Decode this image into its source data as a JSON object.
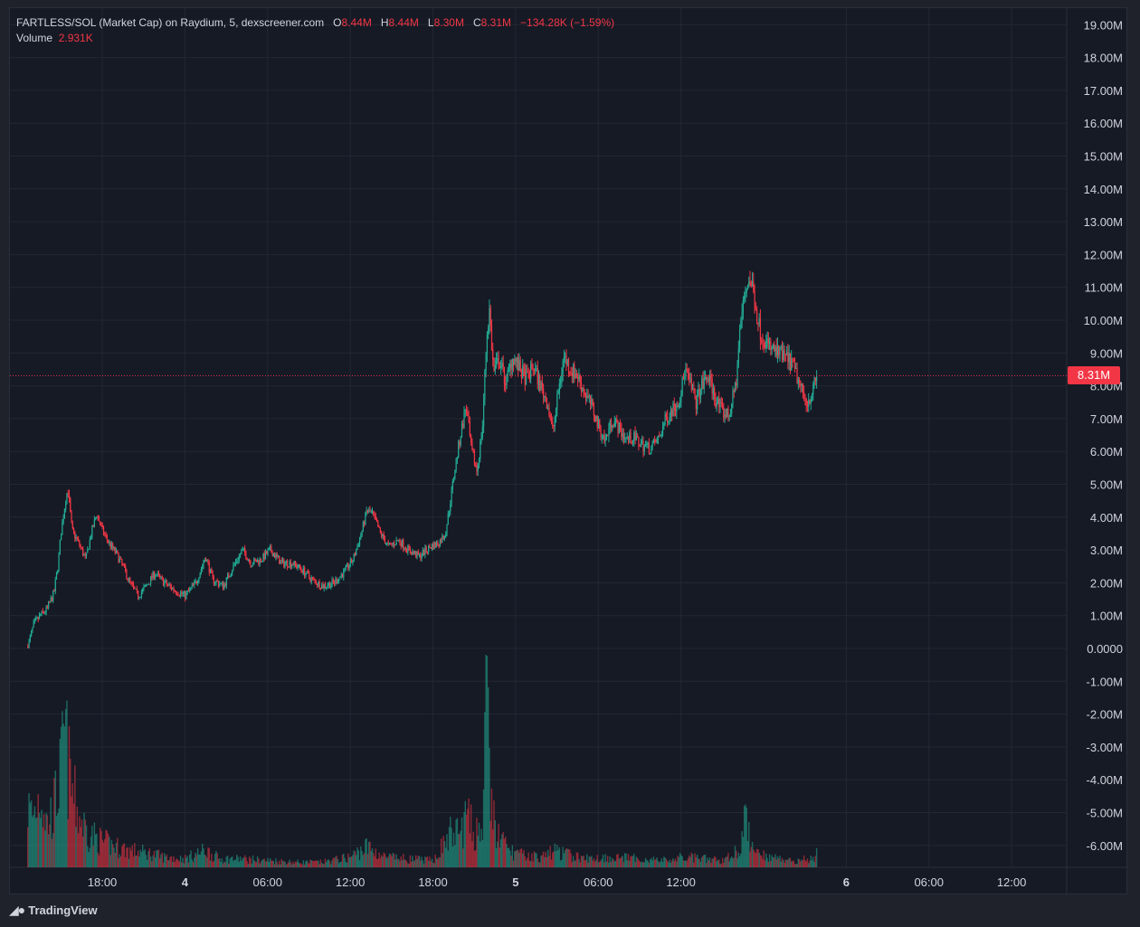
{
  "legend": {
    "symbol": "FARTLESS/SOL (Market Cap) on Raydium, 5, dexscreener.com",
    "o_label": "O",
    "o_value": "8.44M",
    "h_label": "H",
    "h_value": "8.44M",
    "l_label": "L",
    "l_value": "8.30M",
    "c_label": "C",
    "c_value": "8.31M",
    "change": "−134.28K (−1.59%)",
    "volume_label": "Volume",
    "volume_value": "2.931K"
  },
  "last_price_tag": "8.31M",
  "brand": {
    "logo_icon": "tradingview-logo-icon",
    "name": "TradingView"
  },
  "colors": {
    "up": "#22ab94",
    "down": "#f23645",
    "background": "#161a25",
    "grid": "#232733",
    "text": "#d1d4dc"
  },
  "chart_data": {
    "type": "candlestick",
    "title": "FARTLESS/SOL (Market Cap) on Raydium, 5, dexscreener.com",
    "price_axis": {
      "ticks": [
        "19.00M",
        "18.00M",
        "17.00M",
        "16.00M",
        "15.00M",
        "14.00M",
        "13.00M",
        "12.00M",
        "11.00M",
        "10.00M",
        "9.00M",
        "8.00M",
        "7.00M",
        "6.00M",
        "5.00M",
        "4.00M",
        "3.00M",
        "2.00M",
        "1.00M",
        "0.0000",
        "-1.00M",
        "-2.00M",
        "-3.00M",
        "-4.00M",
        "-5.00M",
        "-6.00M"
      ],
      "range": [
        -6.4,
        19.2
      ]
    },
    "time_axis": {
      "ticks": [
        "18:00",
        "4",
        "06:00",
        "12:00",
        "18:00",
        "5",
        "06:00",
        "12:00",
        "6",
        "06:00",
        "12:00"
      ],
      "bold_ticks": [
        "4",
        "5",
        "6"
      ],
      "tick_hours": [
        18,
        24,
        30,
        36,
        42,
        48,
        54,
        60,
        72,
        78,
        84
      ],
      "range_hours": [
        11.3,
        88.0
      ]
    },
    "last_close": 8.31,
    "price_path": [
      [
        12.6,
        0.05
      ],
      [
        13.0,
        0.7
      ],
      [
        13.5,
        1.0
      ],
      [
        14.0,
        1.2
      ],
      [
        14.5,
        1.7
      ],
      [
        14.8,
        2.6
      ],
      [
        15.0,
        3.5
      ],
      [
        15.3,
        4.4
      ],
      [
        15.5,
        4.9
      ],
      [
        15.8,
        3.6
      ],
      [
        16.3,
        3.2
      ],
      [
        16.8,
        2.7
      ],
      [
        17.2,
        3.5
      ],
      [
        17.6,
        4.1
      ],
      [
        18.0,
        3.6
      ],
      [
        18.5,
        3.2
      ],
      [
        19.0,
        2.9
      ],
      [
        19.5,
        2.5
      ],
      [
        20.0,
        2.0
      ],
      [
        20.6,
        1.6
      ],
      [
        21.2,
        1.9
      ],
      [
        21.8,
        2.3
      ],
      [
        22.5,
        2.0
      ],
      [
        23.2,
        1.8
      ],
      [
        24.0,
        1.6
      ],
      [
        24.8,
        2.0
      ],
      [
        25.5,
        2.8
      ],
      [
        26.0,
        2.1
      ],
      [
        26.8,
        1.9
      ],
      [
        27.5,
        2.5
      ],
      [
        28.2,
        3.0
      ],
      [
        28.8,
        2.6
      ],
      [
        29.5,
        2.7
      ],
      [
        30.2,
        3.0
      ],
      [
        31.0,
        2.6
      ],
      [
        31.8,
        2.6
      ],
      [
        32.5,
        2.4
      ],
      [
        33.2,
        2.1
      ],
      [
        34.0,
        1.9
      ],
      [
        34.8,
        2.0
      ],
      [
        35.5,
        2.3
      ],
      [
        36.2,
        2.7
      ],
      [
        36.8,
        3.5
      ],
      [
        37.2,
        4.2
      ],
      [
        37.6,
        4.1
      ],
      [
        38.2,
        3.5
      ],
      [
        38.8,
        3.1
      ],
      [
        39.5,
        3.3
      ],
      [
        40.2,
        3.0
      ],
      [
        41.0,
        2.8
      ],
      [
        41.8,
        3.1
      ],
      [
        42.4,
        3.2
      ],
      [
        42.9,
        3.5
      ],
      [
        43.2,
        4.3
      ],
      [
        43.6,
        5.5
      ],
      [
        44.0,
        6.5
      ],
      [
        44.4,
        7.4
      ],
      [
        44.8,
        6.0
      ],
      [
        45.2,
        5.4
      ],
      [
        45.6,
        6.8
      ],
      [
        45.9,
        9.5
      ],
      [
        46.1,
        10.3
      ],
      [
        46.4,
        8.4
      ],
      [
        46.8,
        8.8
      ],
      [
        47.3,
        8.1
      ],
      [
        47.8,
        8.9
      ],
      [
        48.3,
        8.5
      ],
      [
        48.8,
        8.2
      ],
      [
        49.3,
        8.6
      ],
      [
        49.8,
        8.0
      ],
      [
        50.3,
        7.5
      ],
      [
        50.7,
        6.6
      ],
      [
        51.1,
        7.8
      ],
      [
        51.5,
        8.9
      ],
      [
        52.0,
        8.5
      ],
      [
        52.5,
        8.3
      ],
      [
        53.0,
        7.8
      ],
      [
        53.5,
        7.4
      ],
      [
        54.0,
        6.8
      ],
      [
        54.5,
        6.3
      ],
      [
        55.0,
        7.0
      ],
      [
        55.5,
        6.7
      ],
      [
        56.0,
        6.4
      ],
      [
        56.6,
        6.4
      ],
      [
        57.2,
        6.2
      ],
      [
        57.8,
        6.1
      ],
      [
        58.4,
        6.4
      ],
      [
        58.9,
        7.0
      ],
      [
        59.4,
        7.3
      ],
      [
        59.9,
        7.6
      ],
      [
        60.3,
        8.5
      ],
      [
        60.7,
        8.0
      ],
      [
        61.1,
        7.5
      ],
      [
        61.5,
        8.0
      ],
      [
        62.0,
        8.3
      ],
      [
        62.5,
        7.6
      ],
      [
        63.0,
        7.2
      ],
      [
        63.5,
        7.1
      ],
      [
        64.0,
        8.1
      ],
      [
        64.3,
        9.8
      ],
      [
        64.6,
        10.7
      ],
      [
        64.9,
        11.3
      ],
      [
        65.2,
        11.0
      ],
      [
        65.5,
        10.2
      ],
      [
        65.8,
        9.6
      ],
      [
        66.2,
        9.3
      ],
      [
        66.6,
        9.1
      ],
      [
        67.0,
        9.0
      ],
      [
        67.5,
        8.9
      ],
      [
        68.0,
        8.7
      ],
      [
        68.4,
        8.3
      ],
      [
        68.8,
        7.8
      ],
      [
        69.2,
        7.5
      ],
      [
        69.6,
        7.9
      ],
      [
        69.9,
        8.31
      ]
    ],
    "volume_path": [
      [
        12.6,
        0.35
      ],
      [
        13.0,
        0.3
      ],
      [
        13.5,
        0.45
      ],
      [
        14.0,
        0.25
      ],
      [
        14.5,
        0.35
      ],
      [
        15.0,
        0.55
      ],
      [
        15.3,
        0.8
      ],
      [
        15.5,
        0.6
      ],
      [
        15.8,
        0.45
      ],
      [
        16.3,
        0.3
      ],
      [
        17.0,
        0.2
      ],
      [
        18.0,
        0.15
      ],
      [
        19.0,
        0.12
      ],
      [
        20.0,
        0.1
      ],
      [
        21.5,
        0.08
      ],
      [
        22.5,
        0.06
      ],
      [
        24.0,
        0.05
      ],
      [
        25.5,
        0.1
      ],
      [
        26.5,
        0.05
      ],
      [
        28.0,
        0.05
      ],
      [
        30.0,
        0.04
      ],
      [
        32.0,
        0.03
      ],
      [
        34.0,
        0.03
      ],
      [
        36.0,
        0.06
      ],
      [
        37.2,
        0.12
      ],
      [
        38.5,
        0.06
      ],
      [
        40.0,
        0.05
      ],
      [
        42.0,
        0.04
      ],
      [
        43.3,
        0.2
      ],
      [
        44.0,
        0.2
      ],
      [
        44.4,
        0.3
      ],
      [
        45.0,
        0.2
      ],
      [
        45.6,
        0.25
      ],
      [
        45.9,
        1.0
      ],
      [
        46.2,
        0.4
      ],
      [
        46.6,
        0.2
      ],
      [
        47.5,
        0.1
      ],
      [
        48.5,
        0.07
      ],
      [
        50.0,
        0.06
      ],
      [
        50.7,
        0.1
      ],
      [
        51.5,
        0.08
      ],
      [
        53.0,
        0.05
      ],
      [
        55.0,
        0.06
      ],
      [
        57.0,
        0.05
      ],
      [
        59.0,
        0.04
      ],
      [
        60.3,
        0.06
      ],
      [
        61.5,
        0.05
      ],
      [
        63.0,
        0.04
      ],
      [
        64.2,
        0.1
      ],
      [
        64.6,
        0.26
      ],
      [
        65.0,
        0.18
      ],
      [
        65.5,
        0.1
      ],
      [
        66.5,
        0.06
      ],
      [
        68.0,
        0.04
      ],
      [
        69.5,
        0.05
      ],
      [
        69.9,
        0.1
      ]
    ],
    "volume_max_pixels": 235
  }
}
